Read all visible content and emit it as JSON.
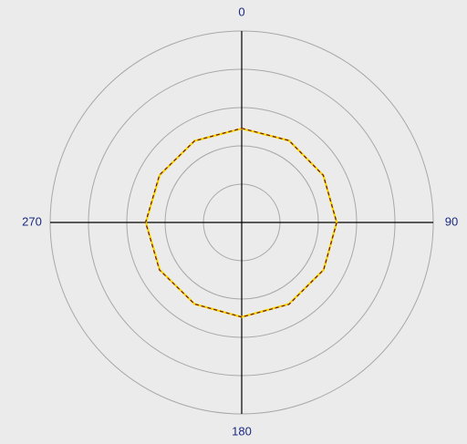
{
  "chart_data": {
    "type": "polar",
    "theta": [
      0,
      30,
      60,
      90,
      120,
      150,
      180,
      210,
      240,
      270,
      300,
      330
    ],
    "series": [
      {
        "color": "#f0d800",
        "values": [
          2.45,
          2.47,
          2.46,
          2.48,
          2.47,
          2.46,
          2.47,
          2.46,
          2.47,
          2.5,
          2.47,
          2.46
        ]
      },
      {
        "color": "#7a1010",
        "values": [
          2.46,
          2.47,
          2.46,
          2.48,
          2.47,
          2.47,
          2.47,
          2.46,
          2.48,
          2.51,
          2.48,
          2.46
        ]
      }
    ],
    "rlim": [
      0,
      5
    ],
    "rticks": [
      1,
      2,
      3,
      4,
      5
    ],
    "thetaticks": [
      0,
      90,
      180,
      270
    ],
    "grid": true
  }
}
